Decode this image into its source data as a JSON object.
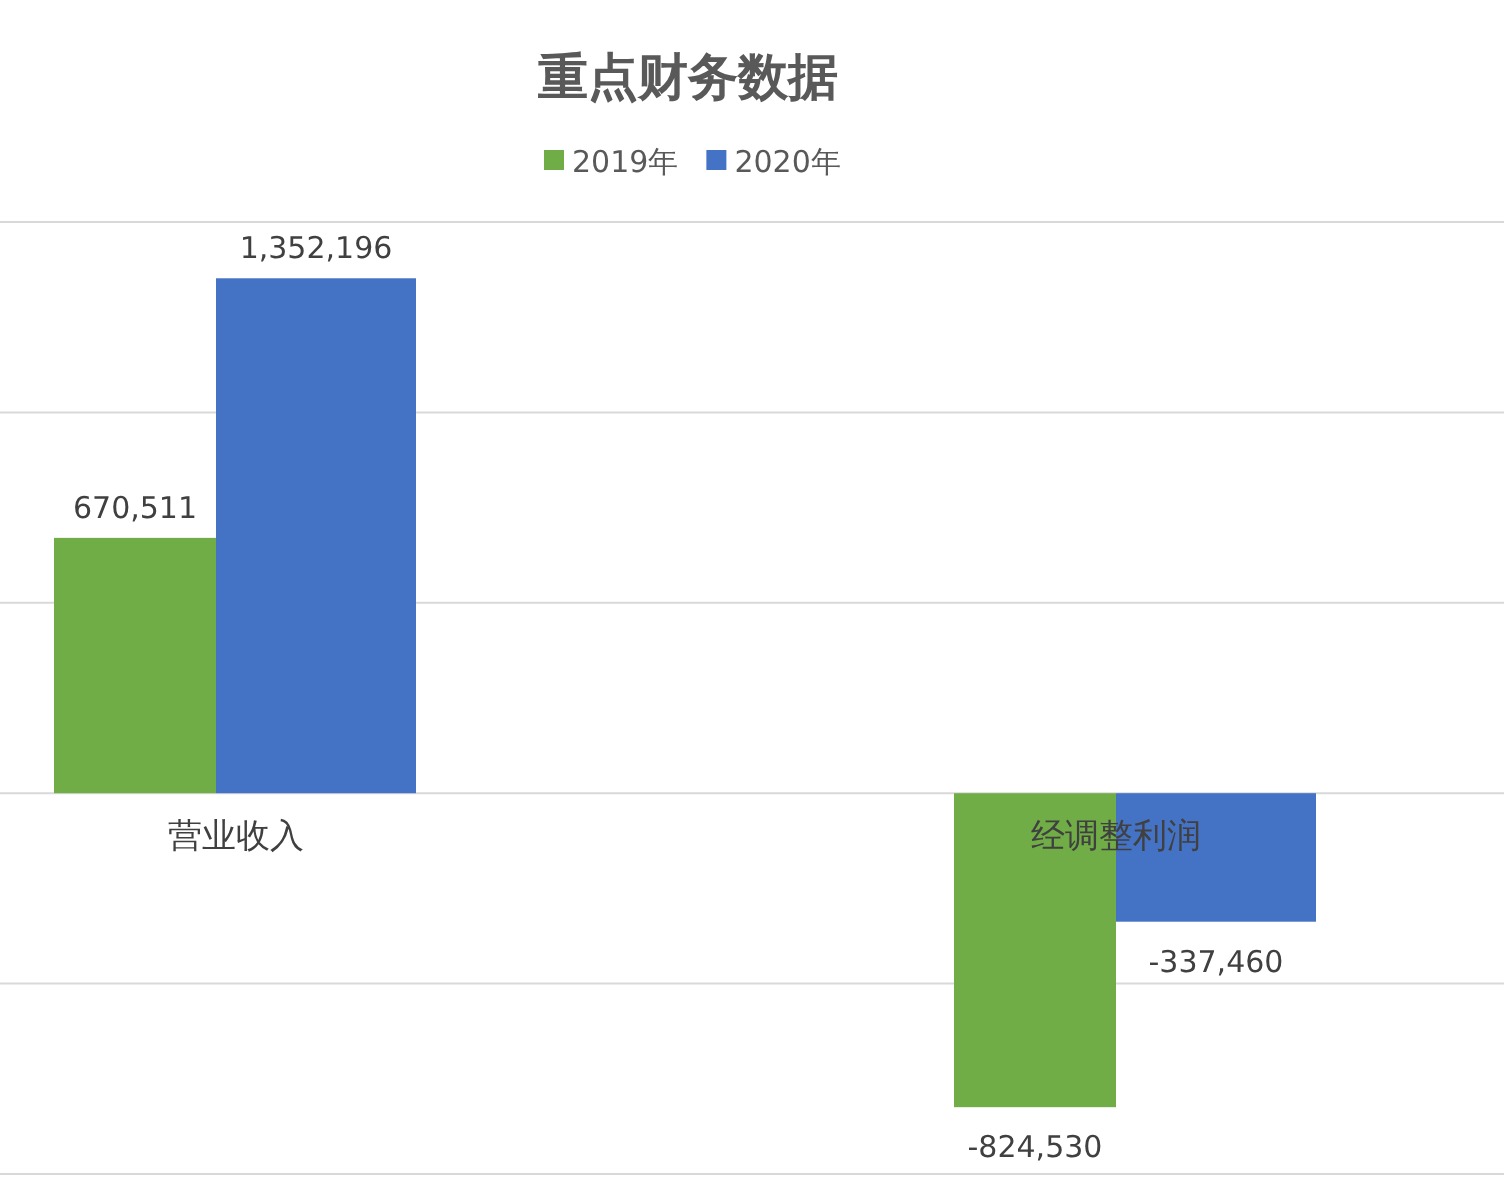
{
  "chart_data": {
    "type": "bar",
    "title": "重点财务数据",
    "categories": [
      "营业收入",
      "经调整利润"
    ],
    "series": [
      {
        "name": "2019年",
        "color": "#70ad47",
        "values": [
          670511,
          -824530
        ],
        "value_labels": [
          "670,511",
          "-824,530"
        ]
      },
      {
        "name": "2020年",
        "color": "#4472c4",
        "values": [
          1352196,
          -337460
        ],
        "value_labels": [
          "1,352,196",
          "-337,460"
        ]
      }
    ],
    "grid": "y",
    "legend": "top"
  }
}
